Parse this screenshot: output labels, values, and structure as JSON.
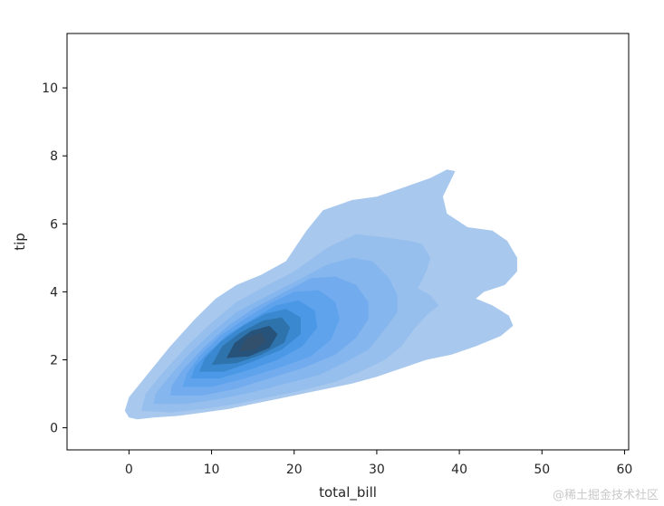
{
  "chart_data": {
    "type": "kde",
    "subtype": "bivariate filled density contour",
    "title": "",
    "xlabel": "total_bill",
    "ylabel": "tip",
    "xlim": [
      -7.5,
      60.5
    ],
    "ylim": [
      -0.65,
      11.6
    ],
    "xticks": [
      0,
      10,
      20,
      30,
      40,
      50,
      60
    ],
    "xtick_labels": [
      "0",
      "10",
      "20",
      "30",
      "40",
      "50",
      "60"
    ],
    "yticks": [
      0,
      2,
      4,
      6,
      8,
      10
    ],
    "ytick_labels": [
      "0",
      "2",
      "4",
      "6",
      "8",
      "10"
    ],
    "density_peak": {
      "x": 15.5,
      "y": 2.4
    },
    "grid": false,
    "legend": "none",
    "colors": {
      "levels": [
        "#a8c8ee",
        "#97bfee",
        "#86b6ee",
        "#72acee",
        "#5fa3ed",
        "#4b98e6",
        "#3a88cf",
        "#2e73ac",
        "#27527a",
        "#324f6b"
      ]
    },
    "levels": [
      {
        "contours": [
          [
            [
              0,
              0.3
            ],
            [
              1,
              0.25
            ],
            [
              3,
              0.3
            ],
            [
              6,
              0.35
            ],
            [
              9,
              0.45
            ],
            [
              12,
              0.55
            ],
            [
              15,
              0.7
            ],
            [
              18,
              0.85
            ],
            [
              21,
              1.0
            ],
            [
              24,
              1.15
            ],
            [
              27,
              1.3
            ],
            [
              30,
              1.5
            ],
            [
              33,
              1.75
            ],
            [
              36,
              2.0
            ],
            [
              39,
              2.15
            ],
            [
              42,
              2.4
            ],
            [
              45,
              2.7
            ],
            [
              46.5,
              3.0
            ],
            [
              46,
              3.3
            ],
            [
              44,
              3.6
            ],
            [
              42,
              3.8
            ],
            [
              43,
              4.0
            ],
            [
              45.5,
              4.2
            ],
            [
              47,
              4.6
            ],
            [
              47,
              5.0
            ],
            [
              45.8,
              5.5
            ],
            [
              44,
              5.8
            ],
            [
              41,
              5.9
            ],
            [
              38.5,
              6.3
            ],
            [
              38,
              6.8
            ],
            [
              39,
              7.3
            ],
            [
              39.5,
              7.55
            ],
            [
              38.5,
              7.6
            ],
            [
              36.5,
              7.35
            ],
            [
              33,
              7.05
            ],
            [
              30,
              6.8
            ],
            [
              27,
              6.7
            ],
            [
              23.5,
              6.4
            ],
            [
              21.5,
              5.8
            ],
            [
              19,
              4.9
            ],
            [
              16,
              4.5
            ],
            [
              13,
              4.2
            ],
            [
              10.5,
              3.8
            ],
            [
              8,
              3.2
            ],
            [
              5,
              2.4
            ],
            [
              2,
              1.5
            ],
            [
              0,
              0.9
            ],
            [
              -0.5,
              0.5
            ]
          ]
        ]
      },
      {
        "contours": [
          [
            [
              1.5,
              0.5
            ],
            [
              5,
              0.45
            ],
            [
              9,
              0.55
            ],
            [
              13,
              0.7
            ],
            [
              17,
              0.9
            ],
            [
              21,
              1.1
            ],
            [
              25,
              1.35
            ],
            [
              28,
              1.65
            ],
            [
              31,
              2.0
            ],
            [
              33,
              2.4
            ],
            [
              34.5,
              2.9
            ],
            [
              36,
              3.3
            ],
            [
              37.5,
              3.6
            ],
            [
              36.5,
              3.9
            ],
            [
              35,
              4.1
            ],
            [
              36,
              4.6
            ],
            [
              36.5,
              5.0
            ],
            [
              35.5,
              5.4
            ],
            [
              34,
              5.5
            ],
            [
              31,
              5.6
            ],
            [
              27.5,
              5.7
            ],
            [
              24,
              5.3
            ],
            [
              20,
              4.6
            ],
            [
              16,
              4.1
            ],
            [
              13,
              3.7
            ],
            [
              10,
              3.1
            ],
            [
              7,
              2.4
            ],
            [
              4,
              1.6
            ],
            [
              2,
              1.0
            ]
          ]
        ]
      },
      {
        "contours": [
          [
            [
              3,
              0.7
            ],
            [
              7,
              0.7
            ],
            [
              11,
              0.85
            ],
            [
              15,
              1.05
            ],
            [
              19,
              1.3
            ],
            [
              23,
              1.55
            ],
            [
              26,
              1.9
            ],
            [
              29,
              2.3
            ],
            [
              31,
              2.9
            ],
            [
              32.5,
              3.4
            ],
            [
              32.5,
              3.9
            ],
            [
              31.5,
              4.4
            ],
            [
              29.5,
              4.9
            ],
            [
              27,
              5.0
            ],
            [
              24,
              4.8
            ],
            [
              20.5,
              4.35
            ],
            [
              16.5,
              3.85
            ],
            [
              13,
              3.4
            ],
            [
              10,
              2.8
            ],
            [
              7,
              2.1
            ],
            [
              4.5,
              1.4
            ],
            [
              3.2,
              1.0
            ]
          ]
        ]
      },
      {
        "contours": [
          [
            [
              5,
              0.95
            ],
            [
              9,
              0.95
            ],
            [
              13,
              1.15
            ],
            [
              17,
              1.45
            ],
            [
              21,
              1.75
            ],
            [
              25,
              2.15
            ],
            [
              27.5,
              2.65
            ],
            [
              29,
              3.2
            ],
            [
              29,
              3.7
            ],
            [
              27.5,
              4.2
            ],
            [
              25,
              4.45
            ],
            [
              22,
              4.4
            ],
            [
              18.5,
              3.95
            ],
            [
              15,
              3.5
            ],
            [
              12,
              3.0
            ],
            [
              9,
              2.35
            ],
            [
              6.5,
              1.7
            ],
            [
              5.2,
              1.25
            ]
          ]
        ]
      },
      {
        "contours": [
          [
            [
              6.5,
              1.2
            ],
            [
              10,
              1.2
            ],
            [
              14,
              1.45
            ],
            [
              18,
              1.75
            ],
            [
              22,
              2.1
            ],
            [
              24.5,
              2.6
            ],
            [
              25.5,
              3.2
            ],
            [
              25,
              3.7
            ],
            [
              23,
              4.05
            ],
            [
              20,
              4.0
            ],
            [
              17,
              3.65
            ],
            [
              14,
              3.2
            ],
            [
              11,
              2.7
            ],
            [
              8.5,
              2.1
            ],
            [
              7,
              1.6
            ]
          ]
        ]
      },
      {
        "contours": [
          [
            [
              7.5,
              1.45
            ],
            [
              11,
              1.45
            ],
            [
              14.5,
              1.7
            ],
            [
              18,
              2.0
            ],
            [
              21,
              2.4
            ],
            [
              22.8,
              2.95
            ],
            [
              22.5,
              3.45
            ],
            [
              20.5,
              3.75
            ],
            [
              17.8,
              3.6
            ],
            [
              15,
              3.2
            ],
            [
              12,
              2.75
            ],
            [
              9.5,
              2.2
            ],
            [
              8,
              1.8
            ]
          ]
        ]
      },
      {
        "contours": [
          [
            [
              8.5,
              1.65
            ],
            [
              11.5,
              1.65
            ],
            [
              15,
              1.95
            ],
            [
              18.5,
              2.3
            ],
            [
              20.8,
              2.75
            ],
            [
              20.8,
              3.25
            ],
            [
              19,
              3.5
            ],
            [
              16.5,
              3.35
            ],
            [
              13.8,
              3.0
            ],
            [
              11.2,
              2.55
            ],
            [
              9.2,
              2.05
            ]
          ]
        ]
      },
      {
        "contours": [
          [
            [
              10,
              1.85
            ],
            [
              13,
              1.9
            ],
            [
              16,
              2.15
            ],
            [
              18.8,
              2.5
            ],
            [
              19.5,
              2.95
            ],
            [
              18.5,
              3.25
            ],
            [
              16.2,
              3.15
            ],
            [
              13.5,
              2.8
            ],
            [
              11.3,
              2.4
            ]
          ]
        ]
      },
      {
        "contours": [
          [
            [
              11.8,
              2.05
            ],
            [
              14.5,
              2.1
            ],
            [
              17,
              2.35
            ],
            [
              18,
              2.75
            ],
            [
              17,
              3.0
            ],
            [
              14.8,
              2.85
            ],
            [
              12.8,
              2.5
            ]
          ]
        ]
      },
      {
        "contours": [
          [
            [
              13.3,
              2.25
            ],
            [
              15.3,
              2.3
            ],
            [
              16.6,
              2.55
            ],
            [
              16,
              2.8
            ],
            [
              14.3,
              2.65
            ]
          ]
        ]
      }
    ]
  },
  "watermark": "@稀土掘金技术社区"
}
